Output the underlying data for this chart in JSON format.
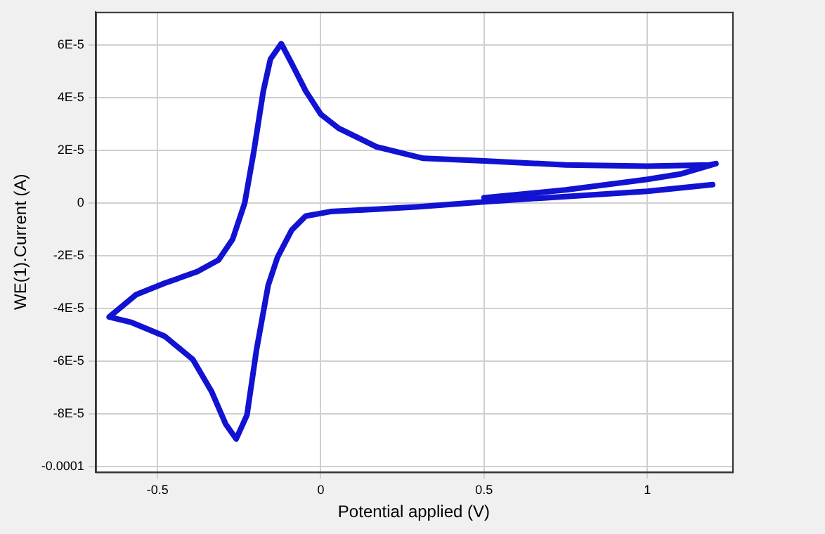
{
  "chart_data": {
    "type": "line",
    "xlabel": "Potential applied (V)",
    "ylabel": "WE(1).Current (A)",
    "xlim": [
      -0.69,
      1.26
    ],
    "ylim": [
      -0.000102,
      7.26e-05
    ],
    "xticks": [
      -0.5,
      0,
      0.5,
      1
    ],
    "yticks": [
      -0.0001,
      {
        "value": -8e-05,
        "label": "-8E-5"
      },
      {
        "value": -6e-05,
        "label": "-6E-5"
      },
      {
        "value": -4e-05,
        "label": "-4E-5"
      },
      {
        "value": -2e-05,
        "label": "-2E-5"
      },
      0,
      {
        "value": 2e-05,
        "label": "2E-5"
      },
      {
        "value": 4e-05,
        "label": "4E-5"
      },
      {
        "value": 6e-05,
        "label": "6E-5"
      }
    ],
    "grid": true,
    "legend": false,
    "x": [
      1.2,
      1.0,
      0.75,
      0.5,
      0.3,
      0.17,
      0.03,
      -0.046,
      -0.089,
      -0.133,
      -0.161,
      -0.197,
      -0.226,
      -0.259,
      -0.291,
      -0.334,
      -0.392,
      -0.478,
      -0.579,
      -0.648,
      -0.565,
      -0.478,
      -0.378,
      -0.313,
      -0.27,
      -0.233,
      -0.205,
      -0.176,
      -0.154,
      -0.121,
      -0.089,
      -0.046,
      0,
      0.055,
      0.17,
      0.314,
      0.5,
      0.75,
      1.0,
      1.19,
      1.21,
      1.1,
      1.0,
      0.75,
      0.5
    ],
    "series": [
      {
        "color": "#1212d2",
        "values": [
          7e-06,
          4.5e-06,
          2.5e-06,
          5e-07,
          -1.4e-06,
          -2.3e-06,
          -3.2e-06,
          -4.9e-06,
          -1.02e-05,
          -2.07e-05,
          -3.12e-05,
          -5.58e-05,
          -8.04e-05,
          -8.95e-05,
          -8.39e-05,
          -7.16e-05,
          -5.93e-05,
          -5.05e-05,
          -4.53e-05,
          -4.32e-05,
          -3.47e-05,
          -3.04e-05,
          -2.6e-05,
          -2.16e-05,
          -1.37e-05,
          0,
          1.96e-05,
          4.25e-05,
          5.47e-05,
          6.05e-05,
          5.3e-05,
          4.25e-05,
          3.37e-05,
          2.84e-05,
          2.14e-05,
          1.7e-05,
          1.6e-05,
          1.45e-05,
          1.4e-05,
          1.45e-05,
          1.5e-05,
          1.1e-05,
          9e-06,
          5e-06,
          2e-06
        ]
      }
    ]
  }
}
